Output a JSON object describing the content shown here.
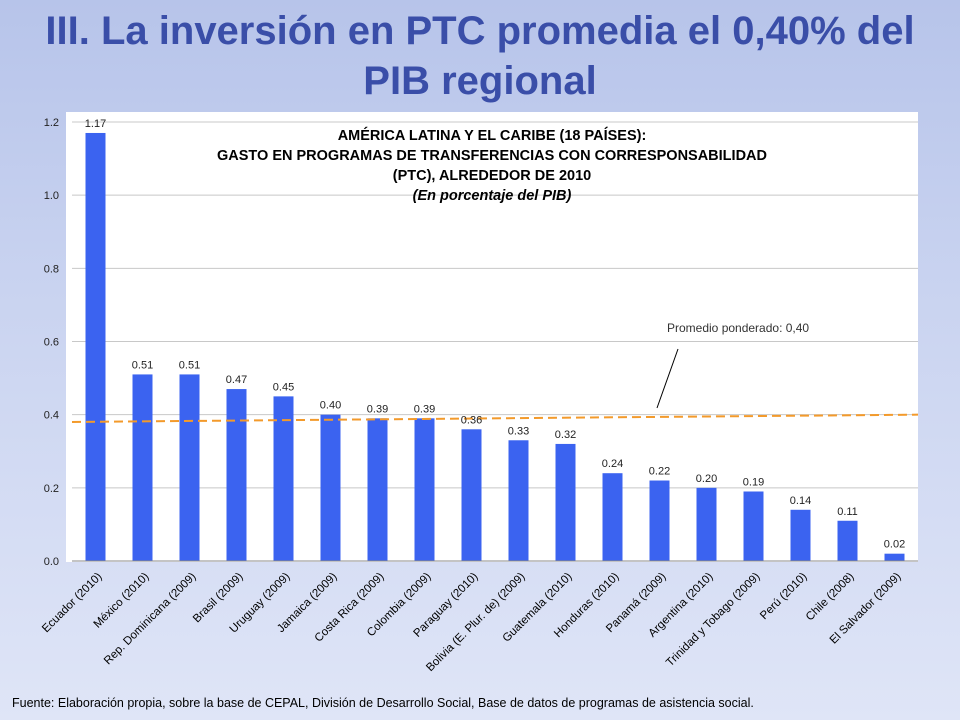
{
  "slide": {
    "title_line1": "III. La inversión en PTC promedia el 0,40% del",
    "title_line2": "PIB regional",
    "source": "Fuente: Elaboración propia, sobre la base de CEPAL, División de Desarrollo Social, Base de datos de programas de asistencia social."
  },
  "colors": {
    "title": "#3a4ea8",
    "bar": "#3b63f0",
    "average_line": "#f39a2b",
    "grid": "#c8c8c8"
  },
  "chart_data": {
    "type": "bar",
    "title_lines": [
      "AMÉRICA LATINA Y EL CARIBE (18 PAÍSES):",
      "GASTO EN PROGRAMAS DE TRANSFERENCIAS CON CORRESPONSABILIDAD",
      "(PTC), ALREDEDOR DE 2010"
    ],
    "subtitle": "(En porcentaje del PIB)",
    "categories": [
      "Ecuador (2010)",
      "México (2010)",
      "Rep. Dominicana (2009)",
      "Brasil (2009)",
      "Uruguay (2009)",
      "Jamaica (2009)",
      "Costa Rica (2009)",
      "Colombia (2009)",
      "Paraguay (2010)",
      "Bolivia (E. Plur. de) (2009)",
      "Guatemala (2010)",
      "Honduras (2010)",
      "Panamá (2009)",
      "Argentina (2010)",
      "Trinidad y Tobago (2009)",
      "Perú (2010)",
      "Chile (2008)",
      "El Salvador (2009)"
    ],
    "values": [
      1.17,
      0.51,
      0.51,
      0.47,
      0.45,
      0.4,
      0.39,
      0.39,
      0.36,
      0.33,
      0.32,
      0.24,
      0.22,
      0.2,
      0.19,
      0.14,
      0.11,
      0.02
    ],
    "value_labels": [
      "1.17",
      "0.51",
      "0.51",
      "0.47",
      "0.45",
      "0.40",
      "0.39",
      "0.39",
      "0.36",
      "0.33",
      "0.32",
      "0.24",
      "0.22",
      "0.20",
      "0.19",
      "0.14",
      "0.11",
      "0.02"
    ],
    "ylim": [
      0,
      1.2
    ],
    "yticks": [
      0.0,
      0.2,
      0.4,
      0.6,
      0.8,
      1.0,
      1.2
    ],
    "ytick_labels": [
      "0.0",
      "0.2",
      "0.4",
      "0.6",
      "0.8",
      "1.0",
      "1.2"
    ],
    "grid": true,
    "average": {
      "label": "Promedio ponderado: 0,40",
      "y_start": 0.38,
      "y_end": 0.4
    }
  }
}
